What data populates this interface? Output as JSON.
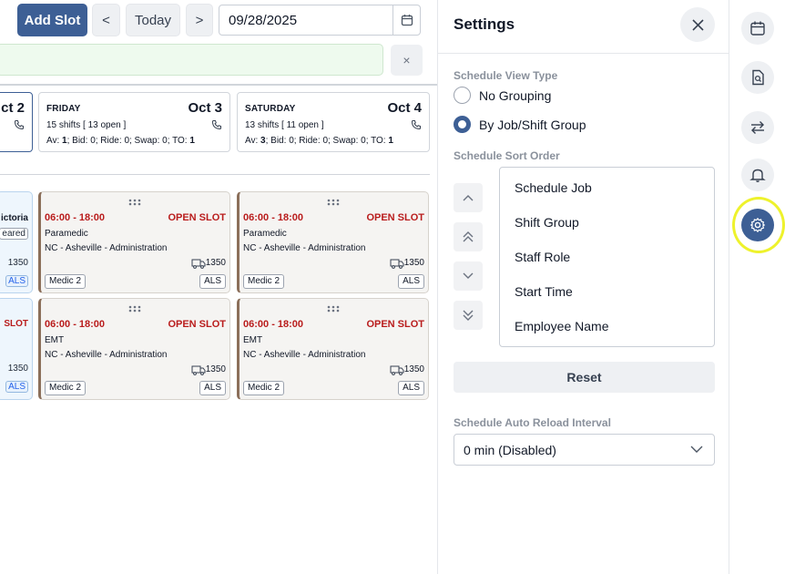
{
  "toolbar": {
    "add_slot": "Add Slot",
    "prev": "<",
    "today": "Today",
    "next": ">",
    "date_value": "09/28/2025",
    "clear": "×"
  },
  "days": [
    {
      "date": "ct 2"
    },
    {
      "name": "FRIDAY",
      "date": "Oct 3",
      "shifts": "15 shifts [ 13 open ]",
      "av": "1",
      "bid": "0",
      "ride": "0",
      "swap": "0",
      "to": "1"
    },
    {
      "name": "SATURDAY",
      "date": "Oct 4",
      "shifts": "13 shifts [ 11 open ]",
      "av": "3",
      "bid": "0",
      "ride": "0",
      "swap": "0",
      "to": "1"
    }
  ],
  "stats_labels": {
    "av": "Av: ",
    "bid": "; Bid: ",
    "ride": "; Ride: ",
    "swap": "; Swap: ",
    "to": "; TO: "
  },
  "partial_cards": [
    {
      "line1": "ictoria",
      "line2": "eared",
      "unit": "1350",
      "tag": "ALS"
    },
    {
      "line1": "SLOT",
      "unit": "1350",
      "tag": "ALS"
    }
  ],
  "cards": [
    {
      "time": "06:00 - 18:00",
      "status": "OPEN SLOT",
      "role": "Paramedic",
      "location": "NC - Asheville - Administration",
      "unit": "1350",
      "tag_left": "Medic 2",
      "tag_right": "ALS"
    },
    {
      "time": "06:00 - 18:00",
      "status": "OPEN SLOT",
      "role": "Paramedic",
      "location": "NC - Asheville - Administration",
      "unit": "1350",
      "tag_left": "Medic 2",
      "tag_right": "ALS"
    },
    {
      "time": "06:00 - 18:00",
      "status": "OPEN SLOT",
      "role": "EMT",
      "location": "NC - Asheville - Administration",
      "unit": "1350",
      "tag_left": "Medic 2",
      "tag_right": "ALS"
    },
    {
      "time": "06:00 - 18:00",
      "status": "OPEN SLOT",
      "role": "EMT",
      "location": "NC - Asheville - Administration",
      "unit": "1350",
      "tag_left": "Medic 2",
      "tag_right": "ALS"
    }
  ],
  "settings": {
    "title": "Settings",
    "view_type_label": "Schedule View Type",
    "view_options": [
      "No Grouping",
      "By Job/Shift Group"
    ],
    "selected_view": "By Job/Shift Group",
    "sort_label": "Schedule Sort Order",
    "sort_items": [
      "Schedule Job",
      "Shift Group",
      "Staff Role",
      "Start Time",
      "Employee Name"
    ],
    "reset": "Reset",
    "reload_label": "Schedule Auto Reload Interval",
    "reload_value": "0 min (Disabled)"
  },
  "rail": [
    "calendar-icon",
    "document-search-icon",
    "swap-arrows-icon",
    "bell-icon",
    "gear-icon"
  ],
  "colors": {
    "primary": "#3d5f95",
    "open_slot": "#b91c1c",
    "highlight": "#eef22c"
  }
}
